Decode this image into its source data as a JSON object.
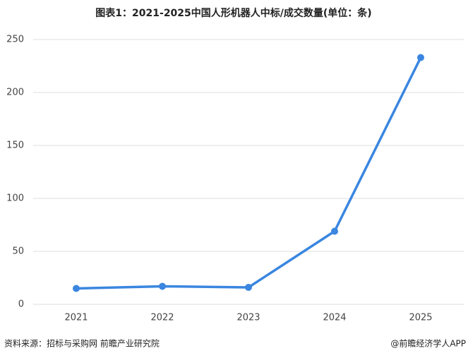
{
  "chart_data": {
    "type": "line",
    "title": "图表1：2021-2025中国人形机器人中标/成交数量(单位：条)",
    "categories": [
      "2021",
      "2022",
      "2023",
      "2024",
      "2025"
    ],
    "series": [
      {
        "name": "中标/成交数量",
        "color": "#3a86e0",
        "values": [
          15,
          17,
          16,
          69,
          233
        ]
      }
    ],
    "ylim": [
      0,
      250
    ],
    "yticks": [
      0,
      50,
      100,
      150,
      200,
      250
    ],
    "grid": true,
    "source": "资料来源：招标与采购网 前瞻产业研究院",
    "credit": "@前瞻经济学人APP"
  }
}
